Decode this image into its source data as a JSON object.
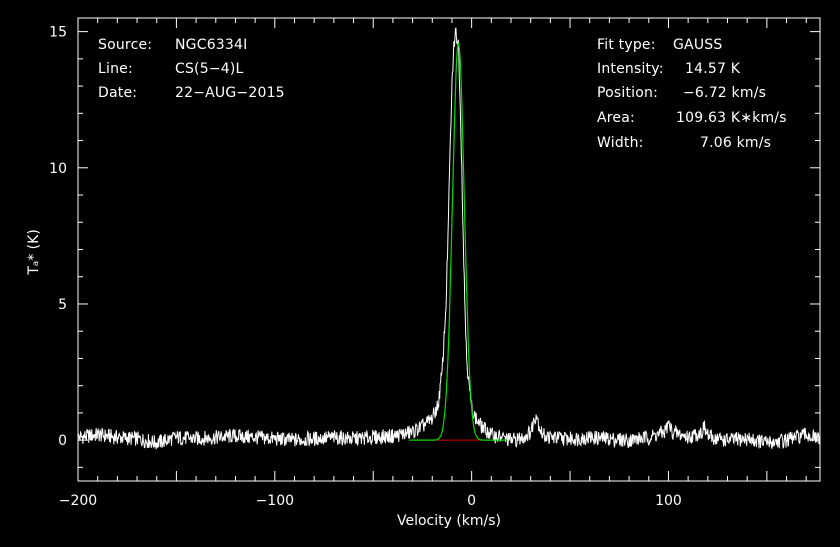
{
  "header_left": {
    "source_label": "Source:",
    "source_value": "NGC6334I",
    "line_label": "Line:",
    "line_value": "CS(5−4)L",
    "date_label": "Date:",
    "date_value": "22−AUG−2015"
  },
  "header_right": {
    "fit_label": "Fit type:",
    "fit_value": "GAUSS",
    "intensity_label": "Intensity:",
    "intensity_value": "14.57 K",
    "position_label": "Position:",
    "position_value": "−6.72 km/s",
    "area_label": "Area:",
    "area_value": "109.63 K∗km/s",
    "width_label": "Width:",
    "width_value": "7.06 km/s"
  },
  "colors": {
    "spectrum": "#ffffff",
    "fit": "#00dd00",
    "baseline": "#dd0000",
    "background": "#000000"
  },
  "chart_data": {
    "type": "line",
    "xlabel": "Velocity (km/s)",
    "ylabel": "Tₐ* (K)",
    "xlim": [
      -200,
      177
    ],
    "ylim": [
      -1.5,
      15.5
    ],
    "xticks": [
      -200,
      -100,
      0,
      100
    ],
    "xtick_labels": [
      "−200",
      "−100",
      "0",
      "100"
    ],
    "yticks": [
      0,
      5,
      10,
      15
    ],
    "ytick_labels": [
      "0",
      "5",
      "10",
      "15"
    ],
    "fit": {
      "model": "gauss",
      "amplitude": 14.57,
      "center": -6.72,
      "fwhm": 7.06
    },
    "baseline_y": 0,
    "baseline_x": [
      -30,
      18
    ],
    "series": [
      {
        "x": [
          -200,
          -190,
          -180,
          -170,
          -160,
          -150,
          -140,
          -130,
          -120,
          -110,
          -100,
          -90,
          -80,
          -70,
          -60,
          -50,
          -40,
          -30,
          -25,
          -20,
          -17,
          -15,
          -13,
          -12,
          -11,
          -10,
          -9,
          -8,
          -7,
          -6.72,
          -6,
          -5,
          -4,
          -3,
          -2,
          -1,
          0,
          2,
          5,
          10,
          15,
          20,
          25,
          30,
          32,
          33,
          34,
          36,
          40,
          50,
          60,
          70,
          80,
          90,
          98,
          100,
          102,
          110,
          117,
          118,
          119,
          121,
          130,
          140,
          150,
          160,
          165,
          170,
          177
        ],
        "y": [
          0.1,
          0.2,
          0.1,
          0.05,
          -0.1,
          0.1,
          0.05,
          0.1,
          0.15,
          0.1,
          0.05,
          0.0,
          0.05,
          0.1,
          0.05,
          0.1,
          0.15,
          0.3,
          0.5,
          0.8,
          1.3,
          2.5,
          5.0,
          7.5,
          10.5,
          13.0,
          14.5,
          15.0,
          14.6,
          14.57,
          13.0,
          10.0,
          6.5,
          4.0,
          2.5,
          1.8,
          1.2,
          0.8,
          0.5,
          0.2,
          0.1,
          0.0,
          0.05,
          0.3,
          0.8,
          1.0,
          0.6,
          0.2,
          0.1,
          0.05,
          0.1,
          0.05,
          0.0,
          0.1,
          0.3,
          0.6,
          0.3,
          0.1,
          0.3,
          0.5,
          0.3,
          0.1,
          0.0,
          0.05,
          -0.1,
          0.0,
          0.1,
          0.2,
          0.0
        ]
      }
    ]
  }
}
